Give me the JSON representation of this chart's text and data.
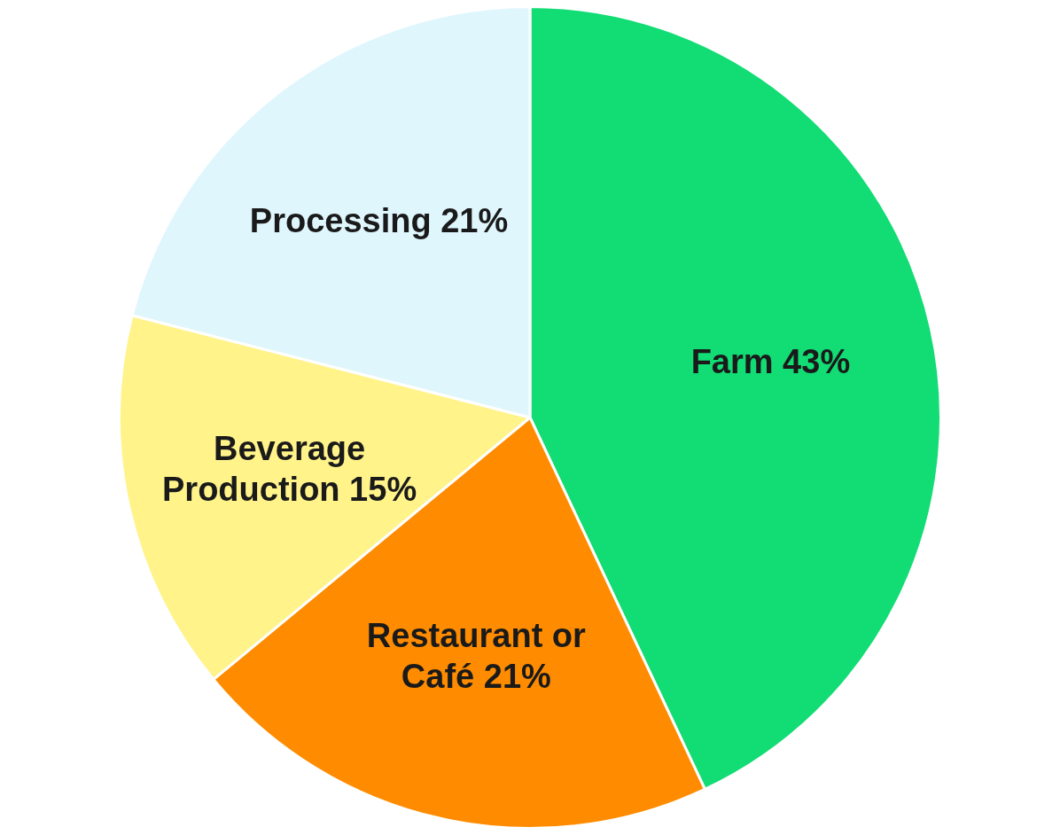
{
  "chart_data": {
    "type": "pie",
    "categories": [
      "Farm",
      "Restaurant or Café",
      "Beverage Production",
      "Processing"
    ],
    "values": [
      43,
      21,
      15,
      21
    ],
    "value_labels": [
      "43%",
      "21%",
      "15%",
      "21%"
    ],
    "colors": [
      "#12dc74",
      "#ff8c00",
      "#fff38a",
      "#dff6fd"
    ],
    "legend": false
  }
}
